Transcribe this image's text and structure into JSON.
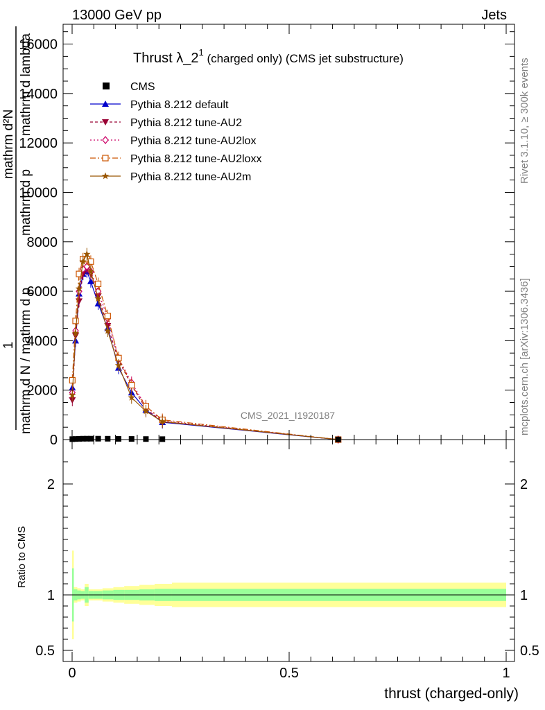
{
  "header": {
    "left": "13000 GeV pp",
    "right": "Jets"
  },
  "side": {
    "rivet": "Rivet 3.1.10, ≥ 300k events",
    "mcplots": "mcplots.cern.ch [arXiv:1306.3436]"
  },
  "chart_data": {
    "type": "line",
    "title_main": "Thrust λ_2",
    "title_sup": "1",
    "title_rest": " (charged only) (CMS jet substructure)",
    "analysis_tag": "CMS_2021_I1920187",
    "ylabel_parts": [
      "1",
      "mathrm d N / mathrm d p",
      "mathrm d p",
      "mathrm d²N",
      "mathrm d lambda"
    ],
    "xlabel": "thrust (charged-only)",
    "ratio_ylabel": "Ratio to CMS",
    "xlim": [
      0,
      1
    ],
    "ylim_main": [
      0,
      16800
    ],
    "ylim_ratio": [
      0.4,
      2.4
    ],
    "main_yticks": [
      0,
      2000,
      4000,
      6000,
      8000,
      10000,
      12000,
      14000,
      16000
    ],
    "main_ytick_labels": [
      "0",
      "2000",
      "4000",
      "6000",
      "8000",
      "10000",
      "12000",
      "14000",
      "16000"
    ],
    "xticks": [
      0,
      0.5,
      1
    ],
    "xtick_labels": [
      "0",
      "0.5",
      "1"
    ],
    "ratio_yticks": [
      0.5,
      1,
      2
    ],
    "ratio_ytick_labels": [
      "0.5",
      "1",
      "2"
    ],
    "x": [
      0.0005,
      0.008,
      0.016,
      0.025,
      0.034,
      0.043,
      0.06,
      0.082,
      0.107,
      0.137,
      0.17,
      0.208,
      0.613
    ],
    "data": {
      "name": "CMS",
      "y": [
        18,
        24,
        30,
        35,
        36,
        36,
        36,
        34,
        30,
        26,
        22,
        18,
        6
      ]
    },
    "series": [
      {
        "name": "Pythia 8.212 default",
        "color": "#0000cc",
        "dash": "",
        "marker": "triangle-up",
        "y": [
          2100,
          4000,
          5900,
          6700,
          6800,
          6400,
          5500,
          4500,
          2900,
          1900,
          1200,
          700,
          0
        ]
      },
      {
        "name": "Pythia 8.212 tune-AU2",
        "color": "#990033",
        "dash": "4,3",
        "marker": "triangle-down",
        "y": [
          1600,
          4200,
          5600,
          6700,
          6900,
          6700,
          5800,
          4600,
          3200,
          2200,
          1250,
          720,
          0
        ]
      },
      {
        "name": "Pythia 8.212 tune-AU2lox",
        "color": "#cc0066",
        "dash": "2,3",
        "marker": "diamond",
        "y": [
          1900,
          4400,
          6000,
          6900,
          7000,
          6800,
          6000,
          4900,
          3300,
          2300,
          1350,
          760,
          0
        ]
      },
      {
        "name": "Pythia 8.212 tune-AU2loxx",
        "color": "#cc5500",
        "dash": "8,3,2,3",
        "marker": "square",
        "y": [
          2400,
          4800,
          6700,
          7300,
          7300,
          7200,
          6300,
          5000,
          3300,
          2200,
          1350,
          800,
          0
        ]
      },
      {
        "name": "Pythia 8.212 tune-AU2m",
        "color": "#995500",
        "dash": "",
        "marker": "star",
        "y": [
          1800,
          4300,
          6100,
          7200,
          7500,
          6800,
          5700,
          4400,
          3000,
          1700,
          1150,
          730,
          0
        ]
      }
    ],
    "ratio_bands": {
      "edges": [
        0,
        0.004,
        0.012,
        0.02,
        0.029,
        0.038,
        0.048,
        0.07,
        0.095,
        0.12,
        0.155,
        0.19,
        0.23,
        1
      ],
      "green": [
        0.24,
        0.05,
        0.04,
        0.035,
        0.07,
        0.035,
        0.035,
        0.04,
        0.045,
        0.045,
        0.05,
        0.055,
        0.055
      ],
      "yellow": [
        0.4,
        0.07,
        0.06,
        0.05,
        0.1,
        0.05,
        0.05,
        0.06,
        0.07,
        0.08,
        0.09,
        0.1,
        0.11
      ]
    }
  }
}
